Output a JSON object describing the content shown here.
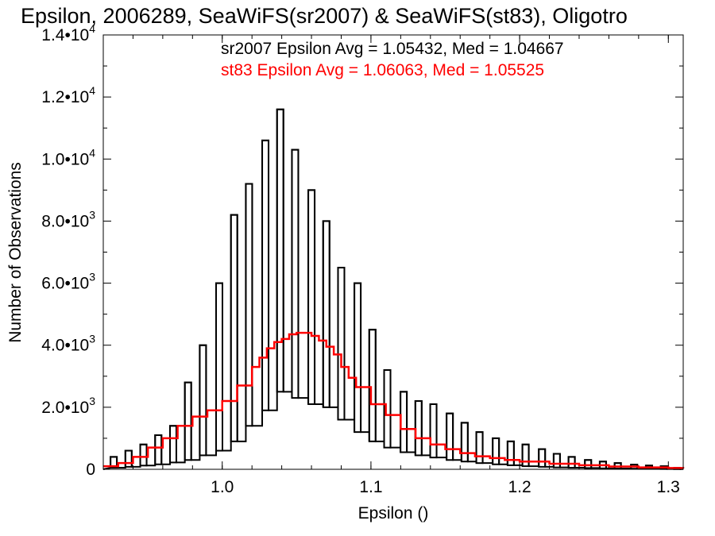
{
  "chart_data": {
    "type": "histogram",
    "title": "Epsilon, 2006289, SeaWiFS(sr2007) & SeaWiFS(st83), Oligotro",
    "xlabel": "Epsilon ()",
    "ylabel": "Number of Observations",
    "xlim": [
      0.92,
      1.31
    ],
    "ylim": [
      0,
      14000
    ],
    "x_ticks": [
      {
        "value": 1.0,
        "label": "1.0"
      },
      {
        "value": 1.1,
        "label": "1.1"
      },
      {
        "value": 1.2,
        "label": "1.2"
      },
      {
        "value": 1.3,
        "label": "1.3"
      }
    ],
    "y_ticks": [
      {
        "value": 0,
        "mantissa": "0",
        "exp": ""
      },
      {
        "value": 2000,
        "mantissa": "2.0•10",
        "exp": "3"
      },
      {
        "value": 4000,
        "mantissa": "4.0•10",
        "exp": "3"
      },
      {
        "value": 6000,
        "mantissa": "6.0•10",
        "exp": "3"
      },
      {
        "value": 8000,
        "mantissa": "8.0•10",
        "exp": "3"
      },
      {
        "value": 10000,
        "mantissa": "1.0•10",
        "exp": "4"
      },
      {
        "value": 12000,
        "mantissa": "1.2•10",
        "exp": "4"
      },
      {
        "value": 14000,
        "mantissa": "1.4•10",
        "exp": "4"
      }
    ],
    "annotations": [
      {
        "text": "sr2007 Epsilon Avg = 1.05432, Med = 1.04667",
        "color": "#000000"
      },
      {
        "text": "st83 Epsilon Avg = 1.06063, Med = 1.05525",
        "color": "#ff0000"
      }
    ],
    "series": [
      {
        "name": "sr2007",
        "color": "#000000",
        "style": "step-spiky",
        "spike_x": [
          0.927,
          0.937,
          0.947,
          0.957,
          0.967,
          0.977,
          0.987,
          0.998,
          1.008,
          1.018,
          1.029,
          1.039,
          1.049,
          1.06,
          1.07,
          1.08,
          1.091,
          1.101,
          1.111,
          1.122,
          1.132,
          1.142,
          1.153,
          1.163,
          1.173,
          1.184,
          1.194,
          1.204,
          1.215,
          1.225,
          1.235,
          1.246,
          1.256,
          1.266,
          1.277,
          1.287,
          1.297,
          1.306
        ],
        "spike_y": [
          400,
          600,
          800,
          1100,
          1400,
          2800,
          4000,
          6000,
          8200,
          9200,
          10600,
          11600,
          10300,
          9000,
          8000,
          6500,
          6000,
          4500,
          3200,
          2500,
          2200,
          2100,
          1800,
          1500,
          1200,
          1000,
          900,
          800,
          650,
          500,
          400,
          300,
          250,
          200,
          150,
          120,
          100,
          50
        ],
        "baseline_y": [
          50,
          80,
          120,
          160,
          220,
          300,
          450,
          600,
          900,
          1400,
          1900,
          2500,
          2300,
          2100,
          2000,
          1600,
          1200,
          900,
          700,
          550,
          450,
          380,
          300,
          250,
          200,
          160,
          130,
          100,
          80,
          60,
          50,
          40,
          30,
          25,
          20,
          15,
          10,
          5
        ]
      },
      {
        "name": "st83",
        "color": "#ff0000",
        "style": "step",
        "x": [
          0.92,
          0.93,
          0.94,
          0.95,
          0.96,
          0.97,
          0.98,
          0.99,
          1.0,
          1.01,
          1.02,
          1.025,
          1.03,
          1.035,
          1.04,
          1.045,
          1.05,
          1.055,
          1.06,
          1.065,
          1.07,
          1.075,
          1.08,
          1.085,
          1.09,
          1.1,
          1.11,
          1.12,
          1.13,
          1.14,
          1.15,
          1.16,
          1.17,
          1.18,
          1.19,
          1.2,
          1.22,
          1.24,
          1.26,
          1.28,
          1.3,
          1.31
        ],
        "y": [
          100,
          200,
          400,
          700,
          1000,
          1400,
          1700,
          1900,
          2200,
          2700,
          3300,
          3600,
          3900,
          4100,
          4200,
          4350,
          4400,
          4400,
          4300,
          4150,
          3950,
          3700,
          3300,
          2950,
          2650,
          2100,
          1750,
          1300,
          1000,
          800,
          650,
          520,
          420,
          360,
          300,
          250,
          180,
          130,
          90,
          60,
          40,
          30
        ]
      }
    ]
  }
}
